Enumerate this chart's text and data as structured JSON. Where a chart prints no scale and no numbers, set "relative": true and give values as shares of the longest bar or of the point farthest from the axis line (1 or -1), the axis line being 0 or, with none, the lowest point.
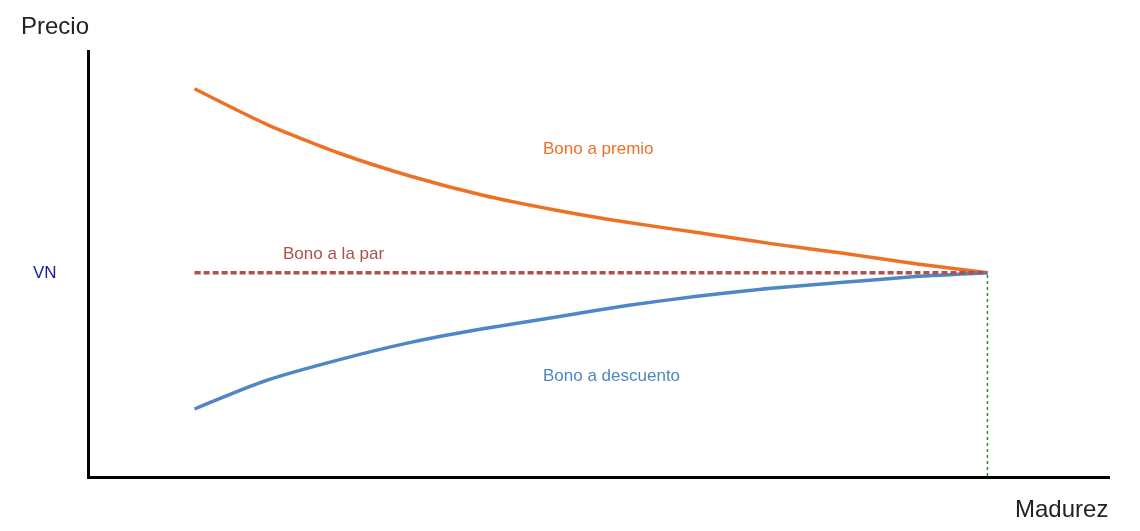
{
  "chart_data": {
    "type": "line",
    "relative": true,
    "xlabel": "Madurez",
    "ylabel": "Precio",
    "categories": [
      null,
      null,
      null,
      null,
      null,
      null,
      null,
      null,
      null,
      null,
      null,
      null
    ],
    "series": [
      {
        "name": "Bono a premio",
        "color": "#ed7125",
        "values": [
          1,
          0.908,
          0.834,
          0.774,
          0.725,
          0.687,
          0.655,
          0.628,
          0.6,
          0.575,
          0.548,
          0.525
        ]
      },
      {
        "name": "Bono a la par",
        "color": "#b0504a",
        "line_style": "dashed",
        "values": [
          0.525,
          0.525,
          0.525,
          0.525,
          0.525,
          0.525,
          0.525,
          0.525,
          0.525,
          0.525,
          0.525,
          0.525
        ]
      },
      {
        "name": "Bono a descuento",
        "color": "#4f86c6",
        "values": [
          0.173,
          0.247,
          0.3,
          0.345,
          0.38,
          0.41,
          0.44,
          0.465,
          0.485,
          0.5,
          0.515,
          0.525
        ]
      }
    ],
    "annotations": [
      "VN"
    ],
    "legend": false,
    "marker": "none",
    "line_style": "solid"
  }
}
